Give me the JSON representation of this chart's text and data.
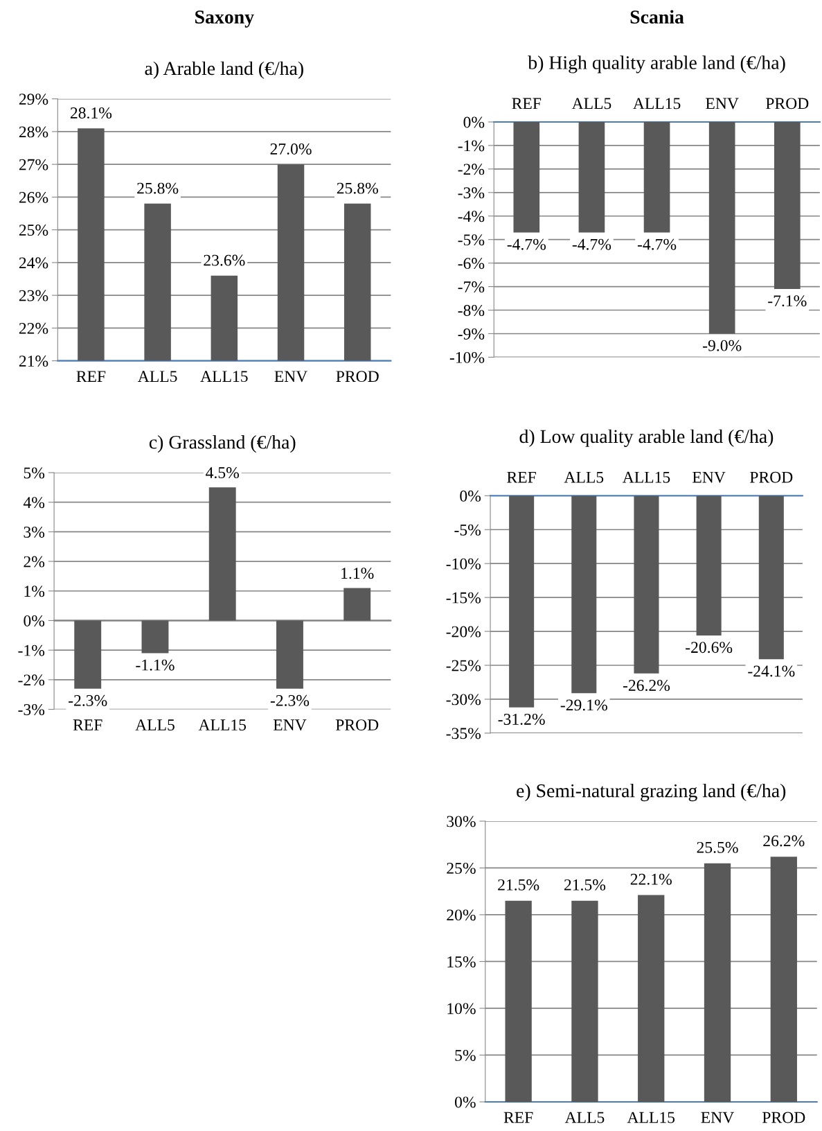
{
  "chart_data": [
    {
      "type": "bar",
      "title": "a) Arable land (€/ha)",
      "annotations": [
        "Saxony"
      ],
      "categories": [
        "REF",
        "ALL5",
        "ALL15",
        "ENV",
        "PROD"
      ],
      "values": [
        28.1,
        25.8,
        23.6,
        27.0,
        25.8
      ],
      "value_labels": [
        "28.1%",
        "25.8%",
        "23.6%",
        "27.0%",
        "25.8%"
      ],
      "color": "#595959",
      "ylim": [
        21,
        29
      ],
      "yticks": [
        {
          "value": 21,
          "label": "21%"
        },
        {
          "value": 22,
          "label": "22%"
        },
        {
          "value": 23,
          "label": "23%"
        },
        {
          "value": 24,
          "label": "24%"
        },
        {
          "value": 25,
          "label": "25%"
        },
        {
          "value": 26,
          "label": "26%"
        },
        {
          "value": 27,
          "label": "27%"
        },
        {
          "value": 28,
          "label": "28%"
        },
        {
          "value": 29,
          "label": "29%"
        }
      ],
      "grid": "y"
    },
    {
      "type": "bar",
      "title": "b) High quality arable land (€/ha)",
      "annotations": [
        "Scania"
      ],
      "categories": [
        "REF",
        "ALL5",
        "ALL15",
        "ENV",
        "PROD"
      ],
      "values": [
        -4.7,
        -4.7,
        -4.7,
        -9.0,
        -7.1
      ],
      "value_labels": [
        "-4.7%",
        "-4.7%",
        "-4.7%",
        "-9.0%",
        "-7.1%"
      ],
      "color": "#595959",
      "ylim": [
        -10,
        0
      ],
      "yticks": [
        {
          "value": -10,
          "label": "-10%"
        },
        {
          "value": -9,
          "label": "-9%"
        },
        {
          "value": -8,
          "label": "-8%"
        },
        {
          "value": -7,
          "label": "-7%"
        },
        {
          "value": -6,
          "label": "-6%"
        },
        {
          "value": -5,
          "label": "-5%"
        },
        {
          "value": -4,
          "label": "-4%"
        },
        {
          "value": -3,
          "label": "-3%"
        },
        {
          "value": -2,
          "label": "-2%"
        },
        {
          "value": -1,
          "label": "-1%"
        },
        {
          "value": 0,
          "label": "0%"
        }
      ],
      "grid": "y"
    },
    {
      "type": "bar",
      "title": "c) Grassland (€/ha)",
      "categories": [
        "REF",
        "ALL5",
        "ALL15",
        "ENV",
        "PROD"
      ],
      "values": [
        -2.3,
        -1.1,
        4.5,
        -2.3,
        1.1
      ],
      "value_labels": [
        "-2.3%",
        "-1.1%",
        "4.5%",
        "-2.3%",
        "1.1%"
      ],
      "color": "#595959",
      "ylim": [
        -3,
        5
      ],
      "yticks": [
        {
          "value": -3,
          "label": "-3%"
        },
        {
          "value": -2,
          "label": "-2%"
        },
        {
          "value": -1,
          "label": "-1%"
        },
        {
          "value": 0,
          "label": "0%"
        },
        {
          "value": 1,
          "label": "1%"
        },
        {
          "value": 2,
          "label": "2%"
        },
        {
          "value": 3,
          "label": "3%"
        },
        {
          "value": 4,
          "label": "4%"
        },
        {
          "value": 5,
          "label": "5%"
        }
      ],
      "grid": "y"
    },
    {
      "type": "bar",
      "title": "d) Low quality arable land (€/ha)",
      "categories": [
        "REF",
        "ALL5",
        "ALL15",
        "ENV",
        "PROD"
      ],
      "values": [
        -31.2,
        -29.1,
        -26.2,
        -20.6,
        -24.1
      ],
      "value_labels": [
        "-31.2%",
        "-29.1%",
        "-26.2%",
        "-20.6%",
        "-24.1%"
      ],
      "color": "#595959",
      "ylim": [
        -35,
        0
      ],
      "yticks": [
        {
          "value": -35,
          "label": "-35%"
        },
        {
          "value": -30,
          "label": "-30%"
        },
        {
          "value": -25,
          "label": "-25%"
        },
        {
          "value": -20,
          "label": "-20%"
        },
        {
          "value": -15,
          "label": "-15%"
        },
        {
          "value": -10,
          "label": "-10%"
        },
        {
          "value": -5,
          "label": "-5%"
        },
        {
          "value": 0,
          "label": "0%"
        }
      ],
      "grid": "y"
    },
    {
      "type": "bar",
      "title": "e) Semi-natural grazing land (€/ha)",
      "categories": [
        "REF",
        "ALL5",
        "ALL15",
        "ENV",
        "PROD"
      ],
      "values": [
        21.5,
        21.5,
        22.1,
        25.5,
        26.2
      ],
      "value_labels": [
        "21.5%",
        "21.5%",
        "22.1%",
        "25.5%",
        "26.2%"
      ],
      "color": "#595959",
      "ylim": [
        0,
        30
      ],
      "yticks": [
        {
          "value": 0,
          "label": "0%"
        },
        {
          "value": 5,
          "label": "5%"
        },
        {
          "value": 10,
          "label": "10%"
        },
        {
          "value": 15,
          "label": "15%"
        },
        {
          "value": 20,
          "label": "20%"
        },
        {
          "value": 25,
          "label": "25%"
        },
        {
          "value": 30,
          "label": "30%"
        }
      ],
      "grid": "y"
    }
  ]
}
